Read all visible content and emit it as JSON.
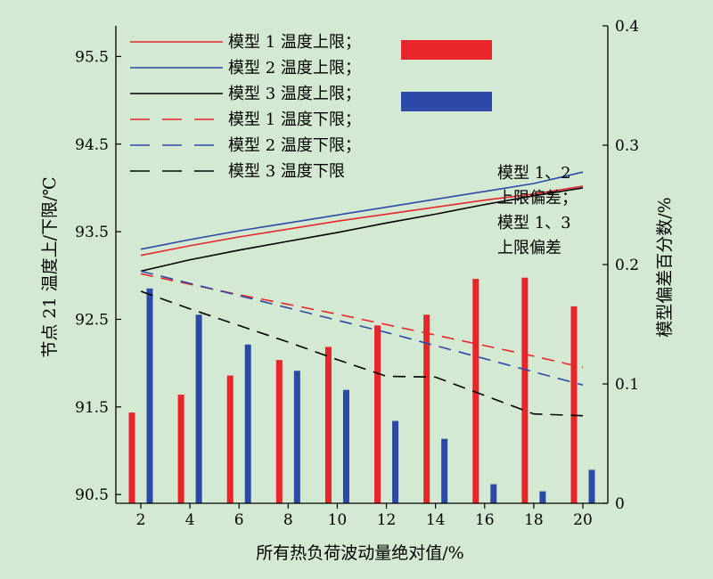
{
  "chart_data": {
    "type": "bar",
    "x": [
      2,
      4,
      6,
      8,
      10,
      12,
      14,
      16,
      18,
      20
    ],
    "xlabel": "所有热负荷波动量绝对值/%",
    "ylabel_left": "节点 21 温度上/下限/℃",
    "ylabel_right": "模型偏差百分数/%",
    "xticks": [
      "2",
      "4",
      "6",
      "8",
      "10",
      "12",
      "14",
      "16",
      "18",
      "20"
    ],
    "yticks_left": [
      "90.5",
      "91.5",
      "92.5",
      "93.5",
      "94.5",
      "95.5"
    ],
    "yticks_right": [
      "0",
      "0.1",
      "0.2",
      "0.3",
      "0.4"
    ],
    "ylim_left": [
      90.4,
      95.85
    ],
    "ylim_right": [
      0,
      0.4
    ],
    "grid": false,
    "line_series": [
      {
        "name": "模型 1 温度上限；",
        "color": "#e8252b",
        "dash": "solid",
        "values": [
          93.23,
          93.34,
          93.44,
          93.53,
          93.62,
          93.7,
          93.78,
          93.86,
          93.93,
          94.02
        ]
      },
      {
        "name": "模型 2 温度上限；",
        "color": "#2b4aa8",
        "dash": "solid",
        "values": [
          93.3,
          93.41,
          93.51,
          93.6,
          93.69,
          93.78,
          93.87,
          93.96,
          94.05,
          94.18
        ]
      },
      {
        "name": "模型 3 温度上限；",
        "color": "#000000",
        "dash": "solid",
        "values": [
          93.05,
          93.18,
          93.29,
          93.39,
          93.49,
          93.6,
          93.7,
          93.81,
          93.91,
          94.0
        ]
      },
      {
        "name": "模型 1 温度下限；",
        "color": "#e8252b",
        "dash": "dashed",
        "values": [
          93.02,
          92.9,
          92.78,
          92.67,
          92.56,
          92.44,
          92.32,
          92.2,
          92.08,
          91.95
        ]
      },
      {
        "name": "模型 2 温度下限；",
        "color": "#2b4aa8",
        "dash": "dashed",
        "values": [
          93.05,
          92.91,
          92.77,
          92.63,
          92.49,
          92.35,
          92.2,
          92.05,
          91.9,
          91.75
        ]
      },
      {
        "name": "模型 3 温度下限",
        "color": "#000000",
        "dash": "dashed",
        "values": [
          92.82,
          92.62,
          92.43,
          92.24,
          92.04,
          91.85,
          91.84,
          91.63,
          91.42,
          91.4
        ]
      }
    ],
    "bar_series": [
      {
        "name": "模型 1、2 上限偏差；",
        "color": "#e8252b",
        "values": [
          0.076,
          0.091,
          0.107,
          0.12,
          0.131,
          0.149,
          0.158,
          0.188,
          0.189,
          0.165
        ]
      },
      {
        "name": "模型 1、3 上限偏差",
        "color": "#2b4aa8",
        "values": [
          0.18,
          0.158,
          0.133,
          0.111,
          0.095,
          0.069,
          0.054,
          0.016,
          0.01,
          0.028
        ]
      }
    ],
    "legend": {
      "placement": "top-left",
      "bar_note_lines": [
        "模型 1、2",
        "上限偏差；",
        "模型 1、3",
        "上限偏差"
      ]
    }
  }
}
